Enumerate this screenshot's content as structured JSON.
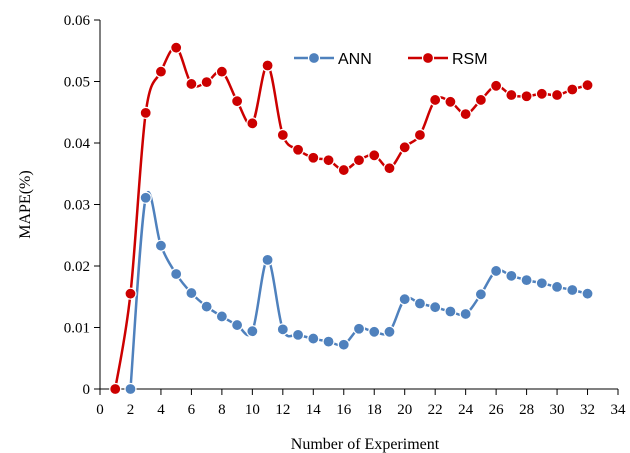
{
  "chart_data": {
    "type": "line",
    "title": "",
    "xlabel": "Number of  Experiment",
    "ylabel": "MAPE(%)",
    "xlim": [
      0,
      34
    ],
    "ylim": [
      0,
      0.06
    ],
    "x_ticks": [
      0,
      2,
      4,
      6,
      8,
      10,
      12,
      14,
      16,
      18,
      20,
      22,
      24,
      26,
      28,
      30,
      32,
      34
    ],
    "x_tick_labels": [
      "0",
      "2",
      "4",
      "6",
      "8",
      "10",
      "12",
      "14",
      "16",
      "18",
      "20",
      "22",
      "24",
      "26",
      "28",
      "30",
      "32",
      "34"
    ],
    "y_ticks": [
      0,
      0.01,
      0.02,
      0.03,
      0.04,
      0.05,
      0.06
    ],
    "y_tick_labels": [
      "0",
      "0.01",
      "0.02",
      "0.03",
      "0.04",
      "0.05",
      "0.06"
    ],
    "grid": false,
    "legend_position": "top-right",
    "series": [
      {
        "name": "ANN",
        "color": "#4F81BD",
        "x": [
          2,
          3,
          4,
          5,
          6,
          7,
          8,
          9,
          10,
          11,
          12,
          13,
          14,
          15,
          16,
          17,
          18,
          19,
          20,
          21,
          22,
          23,
          24,
          25,
          26,
          27,
          28,
          29,
          30,
          31,
          32
        ],
        "values": [
          0,
          0.0311,
          0.0233,
          0.0187,
          0.0156,
          0.0134,
          0.0118,
          0.0104,
          0.0094,
          0.021,
          0.0097,
          0.0088,
          0.0082,
          0.0077,
          0.0072,
          0.0098,
          0.0093,
          0.0093,
          0.0146,
          0.0139,
          0.0133,
          0.0126,
          0.0122,
          0.0154,
          0.0192,
          0.0184,
          0.0177,
          0.0172,
          0.0166,
          0.0161,
          0.0155
        ]
      },
      {
        "name": "RSM",
        "color": "#CC0000",
        "x": [
          1,
          2,
          3,
          4,
          5,
          6,
          7,
          8,
          9,
          10,
          11,
          12,
          13,
          14,
          15,
          16,
          17,
          18,
          19,
          20,
          21,
          22,
          23,
          24,
          25,
          26,
          27,
          28,
          29,
          30,
          31,
          32
        ],
        "values": [
          0,
          0.0155,
          0.0449,
          0.0516,
          0.0555,
          0.0496,
          0.0499,
          0.0516,
          0.0468,
          0.0432,
          0.0526,
          0.0413,
          0.0389,
          0.0376,
          0.0372,
          0.0356,
          0.0372,
          0.038,
          0.0359,
          0.0393,
          0.0413,
          0.047,
          0.0467,
          0.0447,
          0.047,
          0.0493,
          0.0478,
          0.0476,
          0.048,
          0.0478,
          0.0487,
          0.0494
        ]
      }
    ]
  }
}
